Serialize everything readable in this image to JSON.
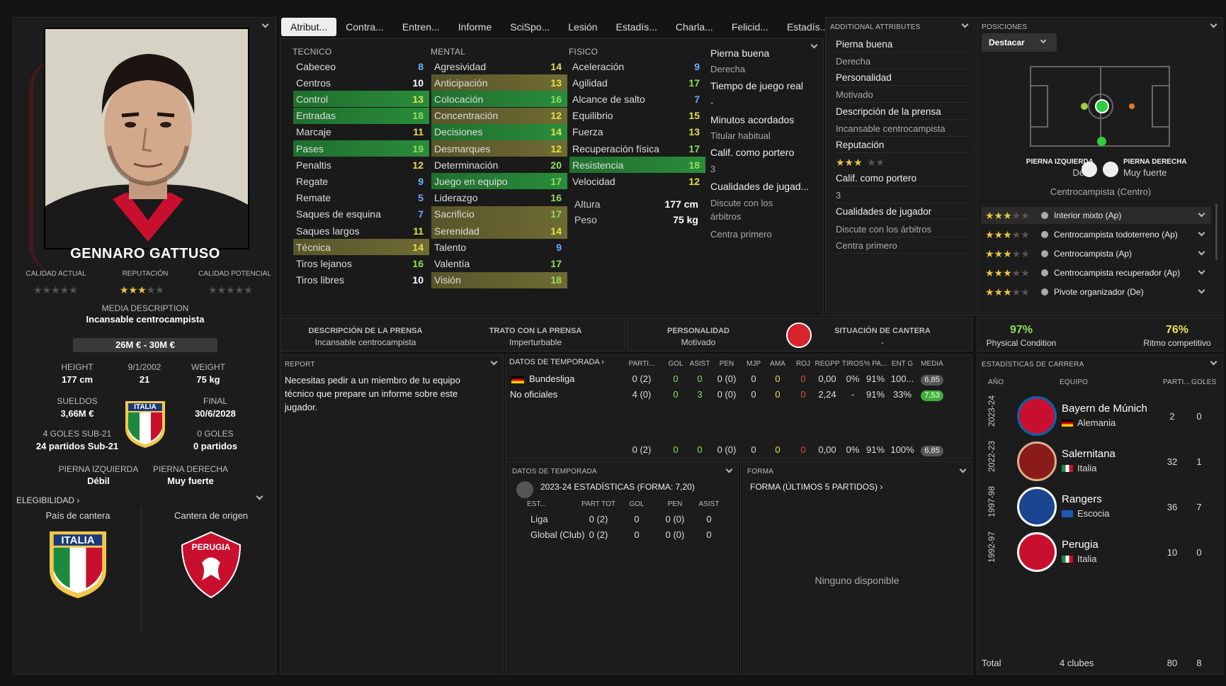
{
  "player": {
    "name": "GENNARO GATTUSO",
    "ca_label": "CALIDAD ACTUAL",
    "rep_label": "REPUTACIÓN",
    "pa_label": "CALIDAD POTENCIAL",
    "media_label": "MEDIA DESCRIPTION",
    "media_value": "Incansable centrocampista",
    "value_range": "26M € - 30M €",
    "height_label": "HEIGHT",
    "height": "177 cm",
    "dob": "9/1/2002",
    "age": "21",
    "weight_label": "WEIGHT",
    "weight": "75 kg",
    "salary_label": "SUELDOS",
    "salary": "3,66M €",
    "final_label": "FINAL",
    "final": "30/6/2028",
    "u21_goals": "4 GOLES SUB-21",
    "u21_games": "24 partidos Sub-21",
    "goals": "0 GOLES",
    "games": "0 partidos",
    "left_foot_label": "PIERNA IZQUIERDA",
    "left_foot": "Débil",
    "right_foot_label": "PIERNA DERECHA",
    "right_foot": "Muy fuerte",
    "eligibility": "ELEGIBILIDAD",
    "youth_country_label": "País de cantera",
    "youth_club_label": "Cantera de origen",
    "flag_text": "ITALIA",
    "club_text": "PERUGIA",
    "reputation_stars": 3
  },
  "tabs": [
    "Atribut...",
    "Contra...",
    "Entren...",
    "Informe",
    "SciSpo...",
    "Lesión",
    "Estadís...",
    "Charla...",
    "Felicid...",
    "Estadís..."
  ],
  "attributes": {
    "tecnico_label": "TECNICO",
    "mental_label": "MENTAL",
    "fisico_label": "FISICO",
    "tecnico": [
      {
        "n": "Cabeceo",
        "v": "8",
        "c": "#6ab0ff"
      },
      {
        "n": "Centros",
        "v": "10",
        "c": "#fff"
      },
      {
        "n": "Control",
        "v": "13",
        "c": "#e6e04a",
        "h": "g"
      },
      {
        "n": "Entradas",
        "v": "18",
        "c": "#8fe05a",
        "h": "g"
      },
      {
        "n": "Marcaje",
        "v": "11",
        "c": "#e6e04a"
      },
      {
        "n": "Pases",
        "v": "19",
        "c": "#8fe05a",
        "h": "g"
      },
      {
        "n": "Penaltis",
        "v": "12",
        "c": "#e6e04a"
      },
      {
        "n": "Regate",
        "v": "9",
        "c": "#6ab0ff"
      },
      {
        "n": "Remate",
        "v": "5",
        "c": "#6ab0ff"
      },
      {
        "n": "Saques de esquina",
        "v": "7",
        "c": "#6ab0ff"
      },
      {
        "n": "Saques largos",
        "v": "11",
        "c": "#e6e04a"
      },
      {
        "n": "Técnica",
        "v": "14",
        "c": "#e6e04a",
        "h": "o"
      },
      {
        "n": "Tiros lejanos",
        "v": "16",
        "c": "#8fe05a"
      },
      {
        "n": "Tiros libres",
        "v": "10",
        "c": "#fff"
      }
    ],
    "mental": [
      {
        "n": "Agresividad",
        "v": "14",
        "c": "#e6e04a"
      },
      {
        "n": "Anticipación",
        "v": "13",
        "c": "#e6e04a",
        "h": "o"
      },
      {
        "n": "Colocación",
        "v": "16",
        "c": "#8fe05a",
        "h": "g"
      },
      {
        "n": "Concentración",
        "v": "12",
        "c": "#e6e04a",
        "h": "o"
      },
      {
        "n": "Decisiones",
        "v": "14",
        "c": "#e6e04a",
        "h": "g"
      },
      {
        "n": "Desmarques",
        "v": "12",
        "c": "#e6e04a",
        "h": "o"
      },
      {
        "n": "Determinación",
        "v": "20",
        "c": "#8fe05a"
      },
      {
        "n": "Juego en equipo",
        "v": "17",
        "c": "#8fe05a",
        "h": "g"
      },
      {
        "n": "Liderazgo",
        "v": "16",
        "c": "#8fe05a"
      },
      {
        "n": "Sacrificio",
        "v": "17",
        "c": "#8fe05a",
        "h": "o"
      },
      {
        "n": "Serenidad",
        "v": "14",
        "c": "#e6e04a",
        "h": "o"
      },
      {
        "n": "Talento",
        "v": "9",
        "c": "#6ab0ff"
      },
      {
        "n": "Valentía",
        "v": "17",
        "c": "#8fe05a"
      },
      {
        "n": "Visión",
        "v": "18",
        "c": "#8fe05a",
        "h": "o"
      }
    ],
    "fisico": [
      {
        "n": "Aceleración",
        "v": "9",
        "c": "#6ab0ff"
      },
      {
        "n": "Agilidad",
        "v": "17",
        "c": "#8fe05a"
      },
      {
        "n": "Alcance de salto",
        "v": "7",
        "c": "#6ab0ff"
      },
      {
        "n": "Equilibrio",
        "v": "15",
        "c": "#e6e04a"
      },
      {
        "n": "Fuerza",
        "v": "13",
        "c": "#e6e04a"
      },
      {
        "n": "Recuperación física",
        "v": "17",
        "c": "#8fe05a"
      },
      {
        "n": "Resistencia",
        "v": "18",
        "c": "#8fe05a",
        "h": "g"
      },
      {
        "n": "Velocidad",
        "v": "12",
        "c": "#e6e04a"
      }
    ],
    "altura_label": "Altura",
    "altura": "177 cm",
    "peso_label": "Peso",
    "peso": "75 kg"
  },
  "mid_info": [
    {
      "t": "Pierna buena",
      "s": false
    },
    {
      "t": "Derecha",
      "s": true
    },
    {
      "t": "Tiempo de juego real",
      "s": false
    },
    {
      "t": "-",
      "s": true
    },
    {
      "t": "Minutos acordados",
      "s": false
    },
    {
      "t": "Titular habitual",
      "s": true
    },
    {
      "t": "Calif. como portero",
      "s": false
    },
    {
      "t": "3",
      "s": true
    },
    {
      "t": "Cualidades de jugad...",
      "s": false
    },
    {
      "t": "Discute con los",
      "s": true
    },
    {
      "t": "árbitros",
      "s": true
    },
    {
      "t": "Centra primero",
      "s": true
    }
  ],
  "additional": {
    "title": "ADDITIONAL ATTRIBUTES",
    "items": [
      {
        "t": "Pierna buena",
        "s": false
      },
      {
        "t": "Derecha",
        "s": true
      },
      {
        "t": "Personalidad",
        "s": false
      },
      {
        "t": "Motivado",
        "s": true
      },
      {
        "t": "Descripción de la prensa",
        "s": false
      },
      {
        "t": "Incansable centrocampista",
        "s": true
      },
      {
        "t": "Reputación",
        "s": false
      },
      {
        "t": "",
        "s": true
      },
      {
        "t": "Calif. como portero",
        "s": false
      },
      {
        "t": "3",
        "s": true
      },
      {
        "t": "Cualidades de jugador",
        "s": false
      },
      {
        "t": "Discute con los árbitros",
        "s": true
      },
      {
        "t": "Centra primero",
        "s": true
      }
    ]
  },
  "positions": {
    "title": "POSICIONES",
    "button": "Destacar",
    "left_foot_label": "PIERNA IZQUIERDA",
    "left_foot": "Débil",
    "right_foot_label": "PIERNA DERECHA",
    "right_foot": "Muy fuerte",
    "main": "Centrocampista (Centro)",
    "roles": [
      {
        "name": "Interior mixto (Ap)",
        "stars": 3
      },
      {
        "name": "Centrocampista todoterreno (Ap)",
        "stars": 3
      },
      {
        "name": "Centrocampista (Ap)",
        "stars": 3
      },
      {
        "name": "Centrocampista recuperador (Ap)",
        "stars": 3
      },
      {
        "name": "Pivote organizador (De)",
        "stars": 3
      }
    ]
  },
  "press": {
    "desc_label": "DESCRIPCIÓN DE LA PRENSA",
    "desc": "Incansable centrocampista",
    "trato_label": "TRATO CON LA PRENSA",
    "trato": "Imperturbable",
    "pers_label": "PERSONALIDAD",
    "pers": "Motivado",
    "cantera_label": "SITUACIÓN DE CANTERA",
    "cantera": "-"
  },
  "condition": {
    "physical": "97%",
    "physical_label": "Physical Condition",
    "ritmo": "76%",
    "ritmo_label": "Ritmo competitivo"
  },
  "report": {
    "title": "REPORT",
    "text": "Necesitas pedir a un miembro de tu equipo técnico que prepare un informe sobre este jugador."
  },
  "season": {
    "title": "DATOS DE TEMPORADA",
    "cols": [
      "PARTI...",
      "GOL",
      "ASIST",
      "PEN",
      "MJP",
      "AMA",
      "ROJ",
      "REGPP",
      "TIROS",
      "% PA...",
      "ENT G",
      "MEDIA"
    ],
    "rows": [
      {
        "name": "Bundesliga",
        "vals": [
          "0 (2)",
          "0",
          "0",
          "0 (0)",
          "0",
          "0",
          "0",
          "0,00",
          "0%",
          "91%",
          "100...",
          "6,85"
        ],
        "pill": "gray"
      },
      {
        "name": "No oficiales",
        "vals": [
          "4 (0)",
          "0",
          "3",
          "0 (0)",
          "0",
          "0",
          "0",
          "2,24",
          "-",
          "91%",
          "33%",
          "7,53"
        ],
        "pill": "green"
      }
    ],
    "total": [
      "0 (2)",
      "0",
      "0",
      "0 (0)",
      "0",
      "0",
      "0",
      "0,00",
      "0%",
      "91%",
      "100%",
      "6,85"
    ]
  },
  "season2": {
    "title": "DATOS DE TEMPORADA",
    "subtitle": "2023-24 ESTADÍSTICAS (FORMA: 7,20)",
    "cols": [
      "EST...",
      "PART TOT",
      "GOL",
      "PEN",
      "ASIST"
    ],
    "rows": [
      {
        "name": "Liga",
        "vals": [
          "0 (2)",
          "0",
          "0 (0)",
          "0"
        ]
      },
      {
        "name": "Global (Club)",
        "vals": [
          "0 (2)",
          "0",
          "0 (0)",
          "0"
        ]
      }
    ]
  },
  "form": {
    "title": "FORMA",
    "subtitle": "FORMA (ÚLTIMOS 5 PARTIDOS)",
    "empty": "Ninguno disponible"
  },
  "career": {
    "title": "ESTADÍSTICAS DE CARRERA",
    "col_year": "AÑO",
    "col_team": "EQUIPO",
    "col_apps": "PARTI...",
    "col_goals": "GOLES",
    "rows": [
      {
        "year": "2023-24",
        "team": "Bayern de Múnich",
        "country": "Alemania",
        "apps": "2",
        "goals": "0",
        "crest": "#c8102e",
        "crest2": "#0066b2"
      },
      {
        "year": "2022-23",
        "team": "Salernitana",
        "country": "Italia",
        "apps": "32",
        "goals": "1",
        "crest": "#8b1a1a",
        "crest2": "#d9b08c"
      },
      {
        "year": "1997-98",
        "team": "Rangers",
        "country": "Escocia",
        "apps": "36",
        "goals": "7",
        "crest": "#1b458f",
        "crest2": "#ffffff"
      },
      {
        "year": "1992-97",
        "team": "Perugia",
        "country": "Italia",
        "apps": "10",
        "goals": "0",
        "crest": "#c8102e",
        "crest2": "#ffffff"
      }
    ],
    "total_label": "Total",
    "total_clubs": "4 clubes",
    "total_apps": "80",
    "total_goals": "8"
  }
}
